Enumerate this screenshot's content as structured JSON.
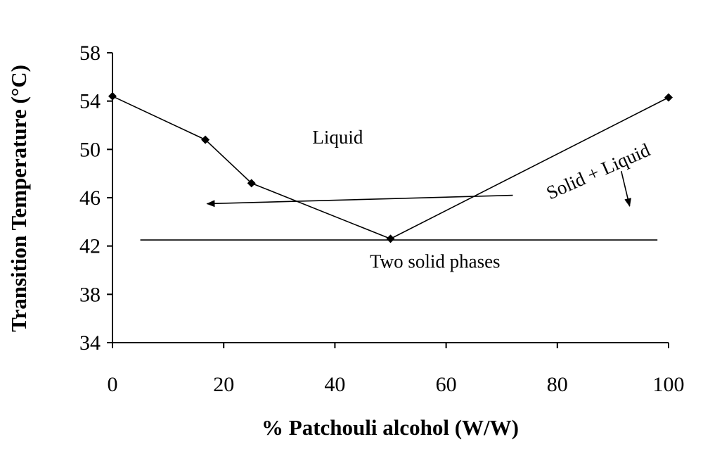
{
  "chart_data": {
    "type": "line",
    "xlabel": "% Patchouli alcohol (W/W)",
    "ylabel": "Transition Temperature (°C)",
    "xlim": [
      0,
      100
    ],
    "ylim": [
      34,
      58
    ],
    "xticks": [
      0,
      20,
      40,
      60,
      80,
      100
    ],
    "yticks": [
      34,
      38,
      42,
      46,
      50,
      54,
      58
    ],
    "grid": false,
    "series": [
      {
        "x": [
          0,
          16.7,
          25,
          50,
          100
        ],
        "y": [
          54.4,
          50.8,
          47.2,
          42.6,
          54.3
        ]
      }
    ],
    "eutectic_line": {
      "y": 42.5,
      "x_start": 5,
      "x_end": 98
    },
    "annotations": [
      {
        "text": "Liquid",
        "x": 40.5,
        "y": 50.5
      },
      {
        "text": "Two solid phases",
        "x": 58,
        "y": 40.2
      },
      {
        "text": "Solid + Liquid",
        "x": 87.8,
        "y": 47.7,
        "angle": -24
      }
    ],
    "arrows": [
      {
        "from": [
          72,
          46.2
        ],
        "to": [
          17,
          45.5
        ]
      },
      {
        "from": [
          91.5,
          48.2
        ],
        "to": [
          93,
          45.3
        ]
      }
    ]
  }
}
